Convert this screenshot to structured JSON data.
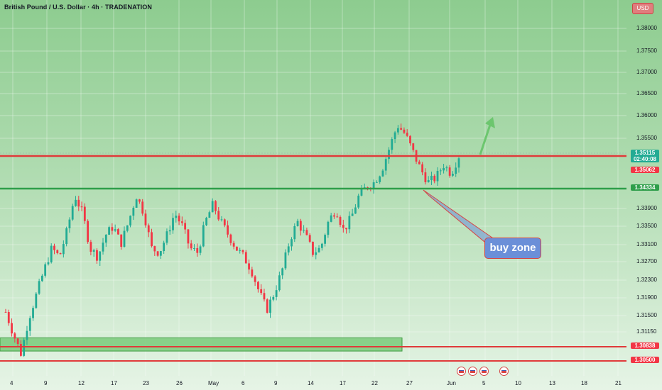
{
  "title": "British Pound / U.S. Dollar · 4h · TRADENATION",
  "currency_badge": "USD",
  "annotation": "buy zone",
  "colors": {
    "up": "#22ab94",
    "down": "#f23645",
    "resistance": "#e03a3a",
    "support": "#2e9e4a",
    "zone": "#6cc66e"
  },
  "chart_data": {
    "type": "candlestick",
    "title": "British Pound / U.S. Dollar · 4h · TRADENATION",
    "ylim": [
      1.3029,
      1.3865
    ],
    "y_ticks": [
      "1.38000",
      "1.37500",
      "1.37000",
      "1.36500",
      "1.36000",
      "1.35500",
      "1.33900",
      "1.33500",
      "1.33100",
      "1.32700",
      "1.32300",
      "1.31900",
      "1.31500",
      "1.31150"
    ],
    "x_ticks": [
      "4",
      "9",
      "12",
      "17",
      "23",
      "26",
      "May",
      "6",
      "9",
      "14",
      "17",
      "22",
      "27",
      "Jun",
      "5",
      "10",
      "13",
      "18",
      "21"
    ],
    "candle_path": [
      1.3155,
      1.3105,
      1.306,
      1.314,
      1.3195,
      1.325,
      1.33,
      1.328,
      1.334,
      1.342,
      1.338,
      1.33,
      1.328,
      1.333,
      1.335,
      1.331,
      1.336,
      1.342,
      1.338,
      1.33,
      1.329,
      1.333,
      1.338,
      1.335,
      1.33,
      1.329,
      1.336,
      1.34,
      1.336,
      1.333,
      1.33,
      1.328,
      1.325,
      1.32,
      1.316,
      1.32,
      1.325,
      1.332,
      1.336,
      1.333,
      1.329,
      1.33,
      1.336,
      1.339,
      1.334,
      1.337,
      1.342,
      1.344,
      1.345,
      1.348,
      1.353,
      1.358,
      1.356,
      1.352,
      1.348,
      1.345,
      1.346,
      1.349,
      1.347,
      1.351
    ],
    "levels": [
      {
        "value": "1.35115",
        "color": "#22ab94",
        "note": "02:40:08"
      },
      {
        "value": "1.35062",
        "color": "#f23645"
      },
      {
        "value": "1.34334",
        "color": "#2e9e4a"
      },
      {
        "value": "1.30838",
        "color": "#f23645"
      },
      {
        "value": "1.30500",
        "color": "#f23645"
      }
    ],
    "zone": {
      "low": 1.3066,
      "high": 1.3096
    },
    "grid": true
  }
}
